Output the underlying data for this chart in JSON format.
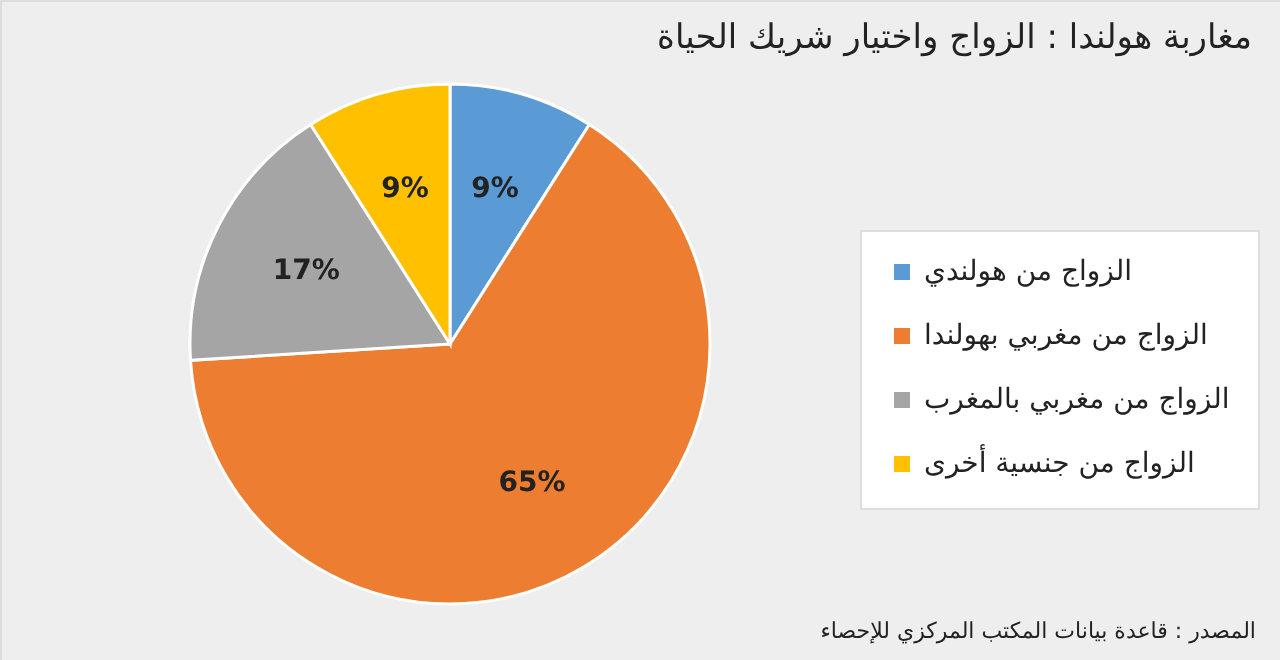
{
  "chart_data": {
    "type": "pie",
    "title": "مغاربة هولندا : الزواج واختيار شريك الحياة",
    "categories": [
      "الزواج من هولندي",
      "الزواج من مغربي بهولندا",
      "الزواج من مغربي بالمغرب",
      "الزواج من جنسية أخرى"
    ],
    "values": [
      9,
      65,
      17,
      9
    ],
    "colors": [
      "#5b9bd5",
      "#ed7d31",
      "#a5a5a5",
      "#ffc000"
    ],
    "value_labels": [
      "9%",
      "65%",
      "17%",
      "9%"
    ],
    "legend": "right",
    "annotations": [
      "المصدر : قاعدة بيانات المكتب المركزي للإحصاء"
    ]
  }
}
